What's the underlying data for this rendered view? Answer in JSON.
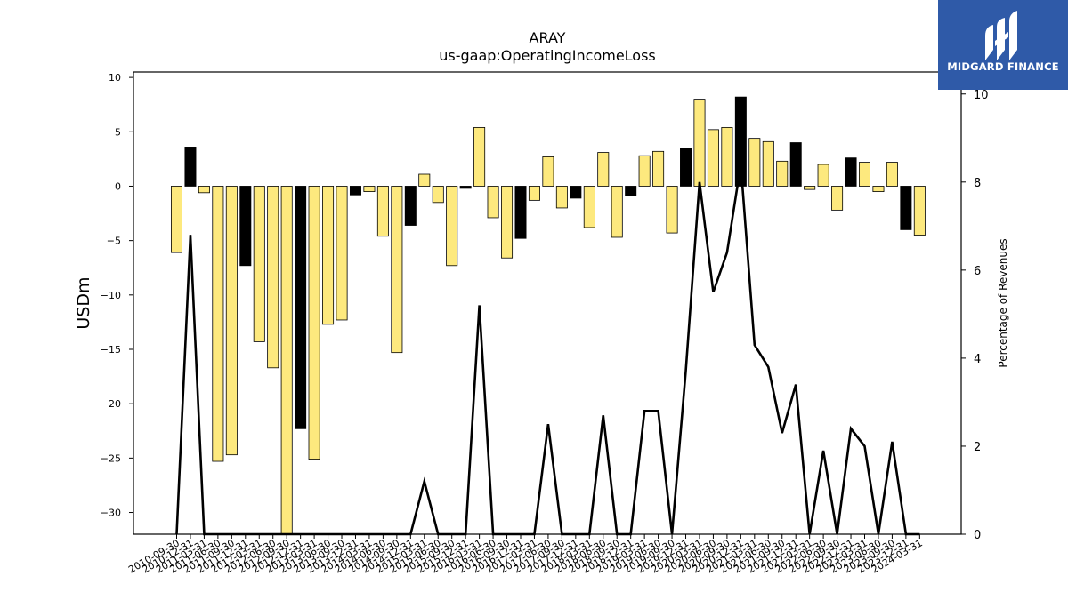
{
  "chart_data": {
    "type": "bar",
    "title": "ARAY",
    "subtitle": "us-gaap:OperatingIncomeLoss",
    "ylabel": "USDm",
    "y2label": "Percentage of Revenues",
    "ylim": [
      -32,
      10.5
    ],
    "y2lim": [
      0,
      10.5
    ],
    "yticks": [
      10,
      5,
      0,
      -5,
      -10,
      -15,
      -20,
      -25,
      -30
    ],
    "y2ticks": [
      0,
      2,
      4,
      6,
      8,
      10
    ],
    "grid": false,
    "categories": [
      "2010-09-30",
      "2010-12-31",
      "2011-03-31",
      "2011-06-30",
      "2011-09-30",
      "2011-12-31",
      "2012-03-31",
      "2012-06-30",
      "2012-09-30",
      "2012-12-31",
      "2013-03-31",
      "2013-06-30",
      "2013-09-30",
      "2013-12-31",
      "2014-03-31",
      "2014-06-30",
      "2014-09-30",
      "2014-12-31",
      "2015-03-31",
      "2015-06-30",
      "2015-09-30",
      "2015-12-31",
      "2016-03-31",
      "2016-06-30",
      "2016-09-30",
      "2016-12-31",
      "2017-03-31",
      "2017-06-30",
      "2017-09-30",
      "2017-12-31",
      "2018-03-31",
      "2018-06-30",
      "2018-09-30",
      "2018-12-31",
      "2019-03-31",
      "2019-06-30",
      "2019-09-30",
      "2019-12-31",
      "2020-03-31",
      "2020-06-30",
      "2020-09-30",
      "2020-12-31",
      "2021-03-31",
      "2021-06-30",
      "2021-09-30",
      "2021-12-31",
      "2022-03-31",
      "2022-06-30",
      "2022-09-30",
      "2022-12-31",
      "2023-03-31",
      "2023-06-30",
      "2023-09-30",
      "2023-12-31",
      "2024-03-31"
    ],
    "tick_labels": [
      "2010-09-30",
      "2010-12-31",
      "2011-03-31",
      "2011-06-30",
      "2011-09-30",
      "2011-12-31",
      "2012-03-31",
      "2012-06-30",
      "2012-09-30",
      "2012-12-31",
      "2013-03-31",
      "2013-06-30",
      "2013-09-30",
      "2013-12-31",
      "2014-03-31",
      "2014-06-30",
      "2014-09-30",
      "2014-12-31",
      "2015-03-31",
      "2015-06-30",
      "2015-09-30",
      "2015-12-31",
      "2016-03-31",
      "2016-06-30",
      "2016-09-30",
      "2016-12-31",
      "2017-03-31",
      "2017-06-30",
      "2017-09-30",
      "2017-12-31",
      "2018-03-31",
      "2018-06-30",
      "2018-09-30",
      "2018-12-31",
      "2019-03-31",
      "2019-06-30",
      "2019-09-30",
      "2019-12-31",
      "2020-03-31",
      "2020-06-30",
      "2020-09-30",
      "2020-12-31",
      "2021-03-31",
      "2021-06-30",
      "2021-09-30",
      "2021-12-31",
      "2022-03-31",
      "2022-06-30",
      "2022-09-30",
      "2022-12-31",
      "2023-03-31",
      "2023-06-30",
      "2023-09-30",
      "2023-12-31",
      "2024-03-31"
    ],
    "series": [
      {
        "values": [
          -6.1,
          3.6,
          -0.6,
          -25.3,
          -24.7,
          -7.3,
          -14.3,
          -16.7,
          -32.0,
          -22.3,
          -25.1,
          -12.7,
          -12.3,
          -0.8,
          -0.5,
          -4.6,
          -15.3,
          -3.6,
          1.1,
          -1.5,
          -7.3,
          -0.2,
          5.4,
          -2.9,
          -6.6,
          -4.8,
          -1.3,
          2.7,
          -2.0,
          -1.1,
          -3.8,
          3.1,
          -4.7,
          -0.9,
          2.8,
          3.2,
          -4.3,
          3.5,
          8.0,
          5.2,
          5.4,
          8.2,
          4.4,
          4.1,
          2.3,
          4.0,
          -0.3,
          2.0,
          -2.2,
          2.6,
          2.2,
          -0.5,
          2.2,
          -4.0,
          -4.5
        ],
        "colors": [
          "#fde97e",
          "#000000",
          "#fde97e",
          "#fde97e",
          "#fde97e",
          "#000000",
          "#fde97e",
          "#fde97e",
          "#fde97e",
          "#000000",
          "#fde97e",
          "#fde97e",
          "#fde97e",
          "#000000",
          "#fde97e",
          "#fde97e",
          "#fde97e",
          "#000000",
          "#fde97e",
          "#fde97e",
          "#fde97e",
          "#000000",
          "#fde97e",
          "#fde97e",
          "#fde97e",
          "#000000",
          "#fde97e",
          "#fde97e",
          "#fde97e",
          "#000000",
          "#fde97e",
          "#fde97e",
          "#fde97e",
          "#000000",
          "#fde97e",
          "#fde97e",
          "#fde97e",
          "#000000",
          "#fde97e",
          "#fde97e",
          "#fde97e",
          "#000000",
          "#fde97e",
          "#fde97e",
          "#fde97e",
          "#000000",
          "#fde97e",
          "#fde97e",
          "#fde97e",
          "#000000",
          "#fde97e",
          "#fde97e",
          "#fde97e",
          "#000000",
          "#fde97e"
        ]
      },
      {
        "type": "line",
        "axis": "right",
        "values": [
          0,
          6.8,
          0,
          0,
          0,
          0,
          0,
          0,
          0,
          0,
          0,
          0,
          0,
          0,
          0,
          0,
          0,
          0,
          1.2,
          0,
          0,
          0,
          5.2,
          0,
          0,
          0,
          0,
          2.5,
          0,
          0,
          0,
          2.7,
          0,
          0,
          2.8,
          2.8,
          0,
          3.7,
          8.0,
          5.5,
          6.4,
          8.4,
          4.3,
          3.8,
          2.3,
          3.4,
          0,
          1.9,
          0,
          2.4,
          2.0,
          0,
          2.1,
          0,
          0
        ],
        "color": "#000000"
      }
    ]
  },
  "logo": {
    "text": "MIDGARD FINANCE",
    "bg_color": "#2f5aa8"
  }
}
